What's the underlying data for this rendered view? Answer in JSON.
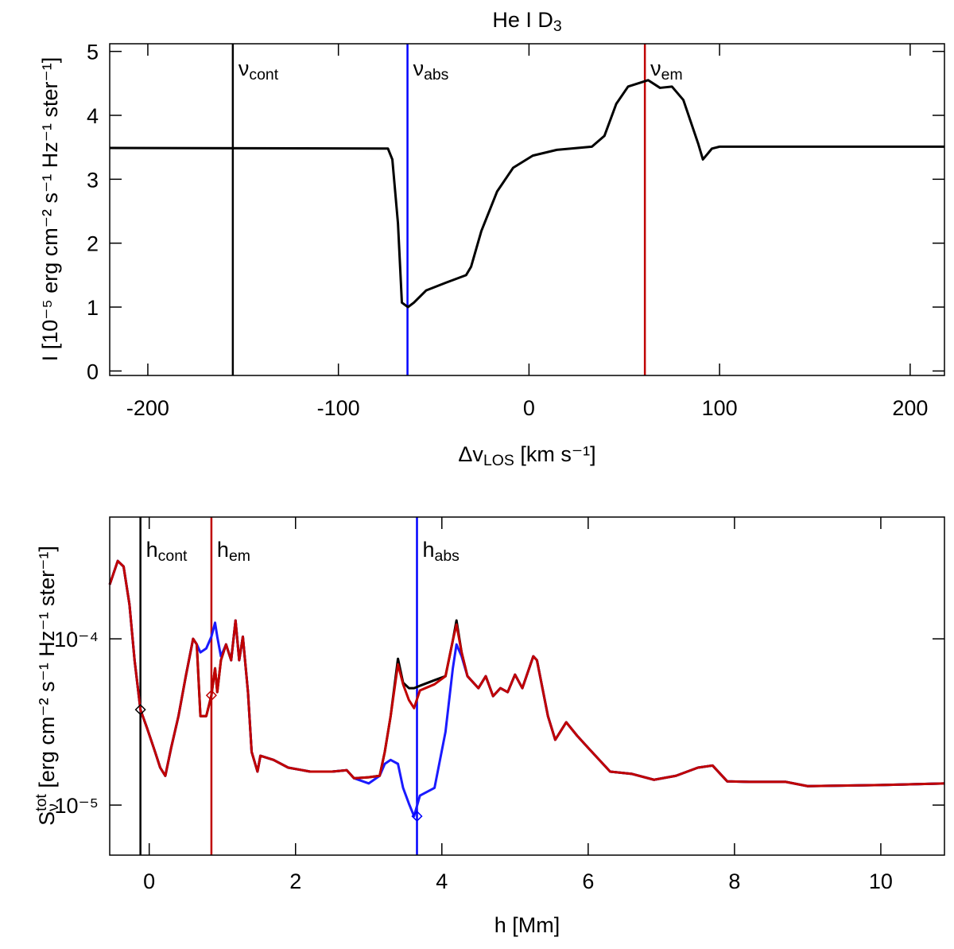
{
  "chart_data": [
    {
      "type": "line",
      "title": [
        {
          "text": "He I D"
        },
        {
          "text": "3",
          "pos": "sub"
        }
      ],
      "xlabel": [
        {
          "text": "Δv"
        },
        {
          "text": "LOS",
          "pos": "sub"
        },
        {
          "text": "  [km s⁻¹]"
        }
      ],
      "ylabel": "I [10⁻⁵ erg cm⁻² s⁻¹ Hz⁻¹ ster⁻¹]",
      "xlim": [
        -220,
        218
      ],
      "ylim": [
        -0.07,
        5.12
      ],
      "xticks": [
        -200,
        -100,
        0,
        100,
        200
      ],
      "yticks": [
        0,
        1,
        2,
        3,
        4,
        5
      ],
      "x": [
        -220,
        -74,
        -71.7,
        -68.75,
        -66.7,
        -63.5,
        -60.4,
        -54,
        -43.75,
        -33,
        -30.4,
        -25,
        -16.7,
        -8.3,
        2,
        14.6,
        33,
        39.6,
        45.8,
        52,
        62.5,
        68.75,
        75,
        81,
        88.75,
        91.25,
        96,
        100,
        218
      ],
      "series": [
        {
          "color": "#000000",
          "values": [
            3.49,
            3.48,
            3.31,
            2.31,
            1.07,
            1.0,
            1.07,
            1.26,
            1.38,
            1.5,
            1.63,
            2.19,
            2.81,
            3.18,
            3.37,
            3.46,
            3.51,
            3.68,
            4.18,
            4.45,
            4.55,
            4.43,
            4.45,
            4.24,
            3.56,
            3.31,
            3.48,
            3.51,
            3.51
          ]
        }
      ],
      "vlines": [
        {
          "x": -155.4,
          "color": "#000000",
          "label": [
            {
              "text": "ν"
            },
            {
              "text": "cont",
              "pos": "sub"
            }
          ]
        },
        {
          "x": -63.75,
          "color": "#0000ff",
          "label": [
            {
              "text": "ν"
            },
            {
              "text": "abs",
              "pos": "sub"
            }
          ]
        },
        {
          "x": 60.8,
          "color": "#c00000",
          "label": [
            {
              "text": "ν"
            },
            {
              "text": "em",
              "pos": "sub"
            }
          ]
        }
      ]
    },
    {
      "type": "line",
      "log_y": true,
      "xlabel": "h [Mm]",
      "ylabel": [
        {
          "text": "S"
        },
        {
          "text": "ν",
          "pos": "sub"
        },
        {
          "text": "tot",
          "pos": "sup"
        },
        {
          "text": "  [erg cm⁻² s⁻¹ Hz⁻¹ ster⁻¹]"
        }
      ],
      "xlim": [
        -0.54,
        10.87
      ],
      "ylim": [
        5e-06,
        0.00054
      ],
      "xticks": [
        0,
        2,
        4,
        6,
        8,
        10
      ],
      "yticks": [
        {
          "value": 1e-05,
          "label": "10⁻⁵"
        },
        {
          "value": 0.0001,
          "label": "10⁻⁴"
        }
      ],
      "x": [
        -0.54,
        -0.43,
        -0.35,
        -0.27,
        -0.2,
        -0.12,
        -0.03,
        0.08,
        0.15,
        0.22,
        0.3,
        0.4,
        0.5,
        0.6,
        0.65,
        0.7,
        0.78,
        0.85,
        0.9,
        0.93,
        0.98,
        1.05,
        1.12,
        1.18,
        1.23,
        1.28,
        1.35,
        1.4,
        1.48,
        1.52,
        1.7,
        1.9,
        2.2,
        2.5,
        2.7,
        2.8,
        3.0,
        3.15,
        3.22,
        3.3,
        3.4,
        3.47,
        3.55,
        3.62,
        3.7,
        3.9,
        4.05,
        4.15,
        4.2,
        4.27,
        4.35,
        4.5,
        4.6,
        4.7,
        4.8,
        4.9,
        5.0,
        5.1,
        5.25,
        5.3,
        5.45,
        5.55,
        5.7,
        5.85,
        6.0,
        6.3,
        6.6,
        6.9,
        7.2,
        7.5,
        7.7,
        7.9,
        8.2,
        8.7,
        9.0,
        10.0,
        10.87
      ],
      "series": [
        {
          "color": "#000000",
          "values": [
            0.000212,
            0.000294,
            0.000272,
            0.000161,
            7.43e-05,
            3.75e-05,
            2.91e-05,
            2.09e-05,
            1.68e-05,
            1.5e-05,
            2.21e-05,
            3.43e-05,
            5.96e-05,
            0.0001,
            9.26e-05,
            3.43e-05,
            3.43e-05,
            4.57e-05,
            6.65e-05,
            4.78e-05,
            7.43e-05,
            9.26e-05,
            7.43e-05,
            0.000129,
            7.43e-05,
            0.000103,
            4.78e-05,
            2.09e-05,
            1.59e-05,
            1.98e-05,
            1.87e-05,
            1.68e-05,
            1.59e-05,
            1.59e-05,
            1.62e-05,
            1.45e-05,
            1.47e-05,
            1.5e-05,
            2.09e-05,
            3.43e-05,
            7.59e-05,
            5.45e-05,
            5.05e-05,
            5.05e-05,
            5.22e-05,
            5.64e-05,
            5.96e-05,
            9.78e-05,
            0.000129,
            8.29e-05,
            5.96e-05,
            5.05e-05,
            5.96e-05,
            4.52e-05,
            5.05e-05,
            4.78e-05,
            6.09e-05,
            5.05e-05,
            7.85e-05,
            7.43e-05,
            3.43e-05,
            2.47e-05,
            3.15e-05,
            2.61e-05,
            2.21e-05,
            1.59e-05,
            1.54e-05,
            1.42e-05,
            1.5e-05,
            1.68e-05,
            1.73e-05,
            1.39e-05,
            1.38e-05,
            1.38e-05,
            1.3e-05,
            1.32e-05,
            1.35e-05
          ]
        },
        {
          "color": "#1a1aff",
          "values": [
            0.000212,
            0.000294,
            0.000272,
            0.000161,
            7.43e-05,
            3.75e-05,
            2.91e-05,
            2.09e-05,
            1.68e-05,
            1.5e-05,
            2.21e-05,
            3.43e-05,
            5.96e-05,
            0.0001,
            9.26e-05,
            8.29e-05,
            8.76e-05,
            0.000103,
            0.000125,
            0.000103,
            7.85e-05,
            9.26e-05,
            7.43e-05,
            0.000129,
            7.43e-05,
            0.000103,
            4.78e-05,
            2.09e-05,
            1.59e-05,
            1.98e-05,
            1.87e-05,
            1.68e-05,
            1.59e-05,
            1.59e-05,
            1.62e-05,
            1.45e-05,
            1.35e-05,
            1.5e-05,
            1.77e-05,
            1.87e-05,
            1.77e-05,
            1.27e-05,
            1.02e-05,
            8.57e-06,
            1.14e-05,
            1.27e-05,
            2.76e-05,
            6.65e-05,
            9.26e-05,
            7.85e-05,
            5.96e-05,
            5.05e-05,
            5.96e-05,
            4.52e-05,
            5.05e-05,
            4.78e-05,
            6.09e-05,
            5.05e-05,
            7.85e-05,
            7.43e-05,
            3.43e-05,
            2.47e-05,
            3.15e-05,
            2.61e-05,
            2.21e-05,
            1.59e-05,
            1.54e-05,
            1.42e-05,
            1.5e-05,
            1.68e-05,
            1.73e-05,
            1.39e-05,
            1.38e-05,
            1.38e-05,
            1.3e-05,
            1.32e-05,
            1.35e-05
          ]
        },
        {
          "color": "#c00000",
          "values": [
            0.000212,
            0.000294,
            0.000272,
            0.000161,
            7.43e-05,
            3.75e-05,
            2.91e-05,
            2.09e-05,
            1.68e-05,
            1.5e-05,
            2.21e-05,
            3.43e-05,
            5.96e-05,
            0.0001,
            9.26e-05,
            3.43e-05,
            3.43e-05,
            4.57e-05,
            6.65e-05,
            4.78e-05,
            7.43e-05,
            9.26e-05,
            7.43e-05,
            0.000129,
            7.43e-05,
            0.000103,
            4.78e-05,
            2.09e-05,
            1.59e-05,
            1.98e-05,
            1.87e-05,
            1.68e-05,
            1.59e-05,
            1.59e-05,
            1.62e-05,
            1.45e-05,
            1.47e-05,
            1.5e-05,
            2.09e-05,
            3.43e-05,
            7.03e-05,
            5.33e-05,
            4.28e-05,
            3.83e-05,
            4.89e-05,
            5.33e-05,
            5.96e-05,
            9.78e-05,
            0.000122,
            8.29e-05,
            5.96e-05,
            5.05e-05,
            5.96e-05,
            4.52e-05,
            5.05e-05,
            4.78e-05,
            6.09e-05,
            5.05e-05,
            7.85e-05,
            7.43e-05,
            3.43e-05,
            2.47e-05,
            3.15e-05,
            2.61e-05,
            2.21e-05,
            1.59e-05,
            1.54e-05,
            1.42e-05,
            1.5e-05,
            1.68e-05,
            1.73e-05,
            1.39e-05,
            1.38e-05,
            1.38e-05,
            1.3e-05,
            1.32e-05,
            1.35e-05
          ]
        }
      ],
      "vlines": [
        {
          "x": -0.12,
          "color": "#000000",
          "label": [
            {
              "text": "h"
            },
            {
              "text": "cont",
              "pos": "sub"
            }
          ]
        },
        {
          "x": 0.85,
          "color": "#c00000",
          "label": [
            {
              "text": "h"
            },
            {
              "text": "em",
              "pos": "sub"
            }
          ]
        },
        {
          "x": 3.66,
          "color": "#0000ff",
          "label": [
            {
              "text": "h"
            },
            {
              "text": "abs",
              "pos": "sub"
            }
          ]
        }
      ],
      "markers": [
        {
          "x": -0.12,
          "y": 3.75e-05,
          "color": "#000000"
        },
        {
          "x": 0.85,
          "y": 4.57e-05,
          "color": "#c00000"
        },
        {
          "x": 3.66,
          "y": 8.57e-06,
          "color": "#0000ff"
        }
      ]
    }
  ]
}
